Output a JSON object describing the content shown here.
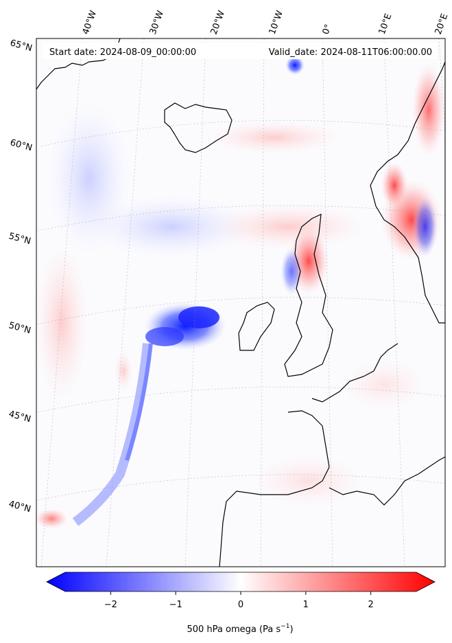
{
  "map": {
    "start_date": "Start date: 2024-08-09_00:00:00",
    "valid_date": "Valid_date: 2024-08-11T06:00:00.00",
    "lon_labels": [
      "40°W",
      "30°W",
      "20°W",
      "10°W",
      "0°",
      "10°E",
      "20°E"
    ],
    "lat_labels": [
      "65°N",
      "60°N",
      "55°N",
      "50°N",
      "45°N",
      "40°N"
    ],
    "features": [
      "coastline-iceland",
      "coastline-scandinavia",
      "coastline-british-isles",
      "coastline-france-iberia",
      "coastline-greenland"
    ]
  },
  "colorbar": {
    "ticks": [
      "−2",
      "−1",
      "0",
      "1",
      "2"
    ],
    "tick_values": [
      -2,
      -1,
      0,
      1,
      2
    ],
    "range": [
      -2.7,
      2.7
    ],
    "label": "500 hPa omega (Pa s",
    "label_sup": "−1",
    "label_tail": ")",
    "colors": {
      "negative": "#0000ff",
      "zero": "#ffffff",
      "positive": "#ff0000"
    }
  }
}
